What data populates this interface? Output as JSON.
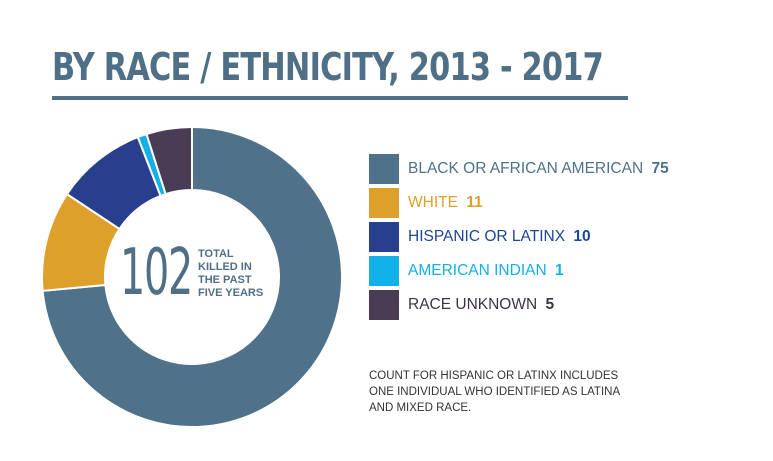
{
  "title": "BY RACE / ETHNICITY, 2013 - 2017",
  "center": {
    "total": "102",
    "caption_lines": [
      "TOTAL",
      "KILLED IN",
      "THE PAST",
      "FIVE YEARS"
    ]
  },
  "chart_data": {
    "type": "pie",
    "style": "donut",
    "title": "BY RACE / ETHNICITY, 2013 - 2017",
    "total": 102,
    "categories": [
      "BLACK OR AFRICAN AMERICAN",
      "WHITE",
      "HISPANIC OR LATINX",
      "AMERICAN INDIAN",
      "RACE UNKNOWN"
    ],
    "values": [
      75,
      11,
      10,
      1,
      5
    ],
    "colors": [
      "#4f7189",
      "#dca02b",
      "#273f8c",
      "#12b0e8",
      "#4a3c55"
    ],
    "label_colors": [
      "#4f7189",
      "#dca02b",
      "#1c4596",
      "#12b0e8",
      "#3e3347"
    ],
    "legend_position": "right"
  },
  "footnote_lines": [
    "COUNT FOR HISPANIC OR LATINX INCLUDES",
    "ONE INDIVIDUAL WHO IDENTIFIED AS LATINA",
    "AND MIXED RACE."
  ]
}
